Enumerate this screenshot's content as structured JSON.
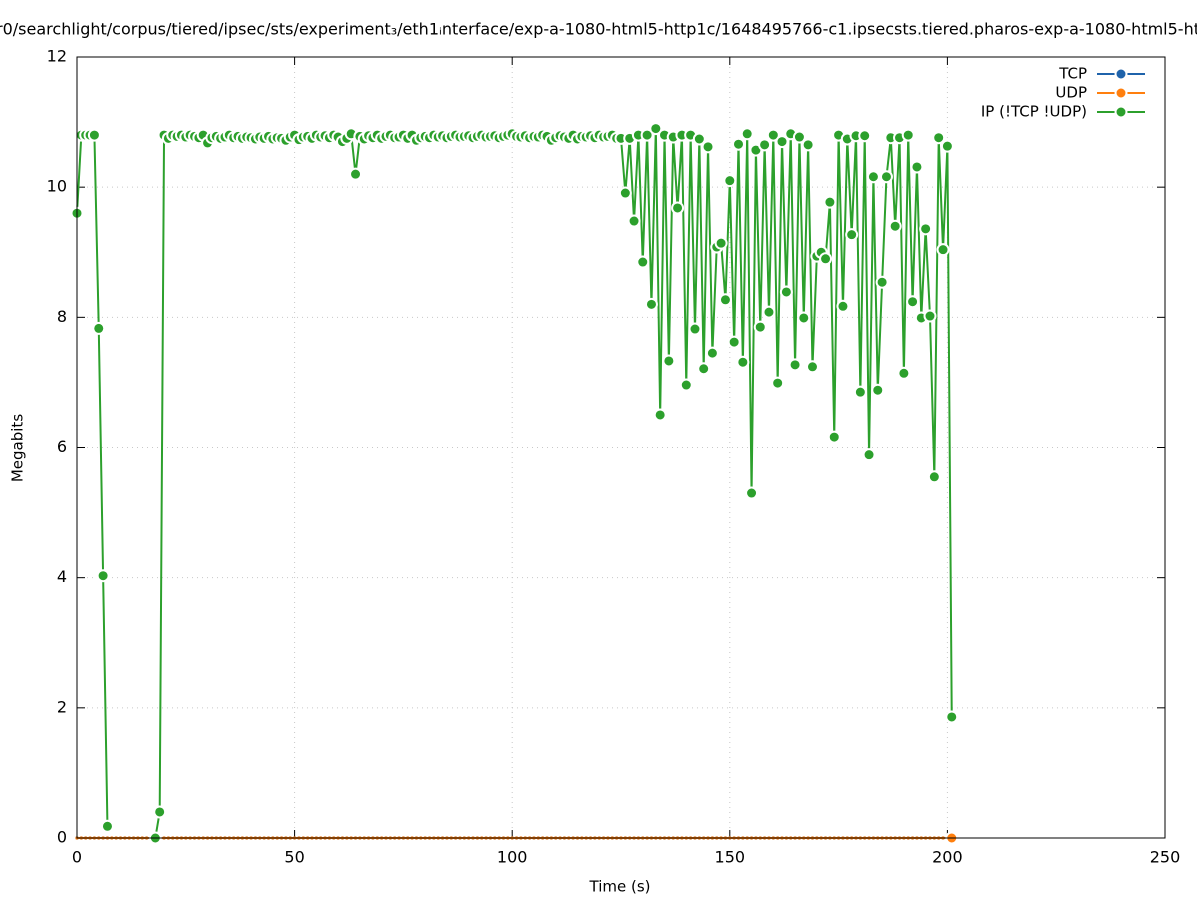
{
  "chart_data": {
    "type": "line",
    "title": "r0/searchlight/corpus/tiered/ipsec/sts/experiment₃/eth1ᵢnterface/exp-a-1080-html5-http1c/1648495766-c1.ipsecsts.tiered.pharos-exp-a-1080-html5-ht",
    "x_label": "Time (s)",
    "y_label": "Megabits",
    "xlim": [
      0,
      250
    ],
    "xticks": [
      0,
      50,
      100,
      150,
      200,
      250
    ],
    "ylim": [
      0,
      12
    ],
    "yticks": [
      0,
      2,
      4,
      6,
      8,
      10,
      12
    ],
    "grid": true,
    "legend": "top-right",
    "x": [
      0,
      1,
      2,
      3,
      4,
      5,
      6,
      7,
      8,
      9,
      10,
      11,
      12,
      13,
      14,
      15,
      16,
      17,
      18,
      19,
      20,
      21,
      22,
      23,
      24,
      25,
      26,
      27,
      28,
      29,
      30,
      31,
      32,
      33,
      34,
      35,
      36,
      37,
      38,
      39,
      40,
      41,
      42,
      43,
      44,
      45,
      46,
      47,
      48,
      49,
      50,
      51,
      52,
      53,
      54,
      55,
      56,
      57,
      58,
      59,
      60,
      61,
      62,
      63,
      64,
      65,
      66,
      67,
      68,
      69,
      70,
      71,
      72,
      73,
      74,
      75,
      76,
      77,
      78,
      79,
      80,
      81,
      82,
      83,
      84,
      85,
      86,
      87,
      88,
      89,
      90,
      91,
      92,
      93,
      94,
      95,
      96,
      97,
      98,
      99,
      100,
      101,
      102,
      103,
      104,
      105,
      106,
      107,
      108,
      109,
      110,
      111,
      112,
      113,
      114,
      115,
      116,
      117,
      118,
      119,
      120,
      121,
      122,
      123,
      124,
      125,
      126,
      127,
      128,
      129,
      130,
      131,
      132,
      133,
      134,
      135,
      136,
      137,
      138,
      139,
      140,
      141,
      142,
      143,
      144,
      145,
      146,
      147,
      148,
      149,
      150,
      151,
      152,
      153,
      154,
      155,
      156,
      157,
      158,
      159,
      160,
      161,
      162,
      163,
      164,
      165,
      166,
      167,
      168,
      169,
      170,
      171,
      172,
      173,
      174,
      175,
      176,
      177,
      178,
      179,
      180,
      181,
      182,
      183,
      184,
      185,
      186,
      187,
      188,
      189,
      190,
      191,
      192,
      193,
      194,
      195,
      196,
      197,
      198,
      199,
      200,
      201
    ],
    "series": [
      {
        "name": "TCP",
        "color": "#1f63ab",
        "values": [
          0,
          0,
          0,
          0,
          0,
          0,
          0,
          0,
          0,
          0,
          0,
          0,
          0,
          0,
          0,
          0,
          0,
          0,
          0,
          0,
          0,
          0,
          0,
          0,
          0,
          0,
          0,
          0,
          0,
          0,
          0,
          0,
          0,
          0,
          0,
          0,
          0,
          0,
          0,
          0,
          0,
          0,
          0,
          0,
          0,
          0,
          0,
          0,
          0,
          0,
          0,
          0,
          0,
          0,
          0,
          0,
          0,
          0,
          0,
          0,
          0,
          0,
          0,
          0,
          0,
          0,
          0,
          0,
          0,
          0,
          0,
          0,
          0,
          0,
          0,
          0,
          0,
          0,
          0,
          0,
          0,
          0,
          0,
          0,
          0,
          0,
          0,
          0,
          0,
          0,
          0,
          0,
          0,
          0,
          0,
          0,
          0,
          0,
          0,
          0,
          0,
          0,
          0,
          0,
          0,
          0,
          0,
          0,
          0,
          0,
          0,
          0,
          0,
          0,
          0,
          0,
          0,
          0,
          0,
          0,
          0,
          0,
          0,
          0,
          0,
          0,
          0,
          0,
          0,
          0,
          0,
          0,
          0,
          0,
          0,
          0,
          0,
          0,
          0,
          0,
          0,
          0,
          0,
          0,
          0,
          0,
          0,
          0,
          0,
          0,
          0,
          0,
          0,
          0,
          0,
          0,
          0,
          0,
          0,
          0,
          0,
          0,
          0,
          0,
          0,
          0,
          0,
          0,
          0,
          0,
          0,
          0,
          0,
          0,
          0,
          0,
          0,
          0,
          0,
          0,
          0,
          0,
          0,
          0,
          0,
          0,
          0,
          0,
          0,
          0,
          0,
          0,
          0,
          0,
          0,
          0,
          0,
          0,
          0,
          0,
          0,
          0
        ]
      },
      {
        "name": "UDP",
        "color": "#ff7f0e",
        "values": [
          0,
          0,
          0,
          0,
          0,
          0,
          0,
          0,
          0,
          0,
          0,
          0,
          0,
          0,
          0,
          0,
          0,
          0,
          0,
          0,
          0,
          0,
          0,
          0,
          0,
          0,
          0,
          0,
          0,
          0,
          0,
          0,
          0,
          0,
          0,
          0,
          0,
          0,
          0,
          0,
          0,
          0,
          0,
          0,
          0,
          0,
          0,
          0,
          0,
          0,
          0,
          0,
          0,
          0,
          0,
          0,
          0,
          0,
          0,
          0,
          0,
          0,
          0,
          0,
          0,
          0,
          0,
          0,
          0,
          0,
          0,
          0,
          0,
          0,
          0,
          0,
          0,
          0,
          0,
          0,
          0,
          0,
          0,
          0,
          0,
          0,
          0,
          0,
          0,
          0,
          0,
          0,
          0,
          0,
          0,
          0,
          0,
          0,
          0,
          0,
          0,
          0,
          0,
          0,
          0,
          0,
          0,
          0,
          0,
          0,
          0,
          0,
          0,
          0,
          0,
          0,
          0,
          0,
          0,
          0,
          0,
          0,
          0,
          0,
          0,
          0,
          0,
          0,
          0,
          0,
          0,
          0,
          0,
          0,
          0,
          0,
          0,
          0,
          0,
          0,
          0,
          0,
          0,
          0,
          0,
          0,
          0,
          0,
          0,
          0,
          0,
          0,
          0,
          0,
          0,
          0,
          0,
          0,
          0,
          0,
          0,
          0,
          0,
          0,
          0,
          0,
          0,
          0,
          0,
          0,
          0,
          0,
          0,
          0,
          0,
          0,
          0,
          0,
          0,
          0,
          0,
          0,
          0,
          0,
          0,
          0,
          0,
          0,
          0,
          0,
          0,
          0,
          0,
          0,
          0,
          0,
          0,
          0,
          0,
          0,
          0,
          0
        ]
      },
      {
        "name": "IP (!TCP  !UDP)",
        "color": "#2ca02c",
        "values": [
          9.6,
          10.8,
          10.8,
          10.8,
          10.8,
          7.83,
          4.03,
          0.18,
          null,
          null,
          null,
          null,
          null,
          null,
          null,
          null,
          null,
          null,
          0,
          0.4,
          10.8,
          10.75,
          10.8,
          10.78,
          10.8,
          10.77,
          10.8,
          10.78,
          10.76,
          10.8,
          10.68,
          10.76,
          10.78,
          10.75,
          10.77,
          10.8,
          10.76,
          10.78,
          10.75,
          10.77,
          10.76,
          10.74,
          10.77,
          10.75,
          10.78,
          10.74,
          10.76,
          10.75,
          10.72,
          10.77,
          10.8,
          10.73,
          10.77,
          10.78,
          10.75,
          10.8,
          10.77,
          10.79,
          10.76,
          10.8,
          10.77,
          10.7,
          10.75,
          10.82,
          10.2,
          10.78,
          10.74,
          10.79,
          10.76,
          10.8,
          10.75,
          10.78,
          10.8,
          10.76,
          10.77,
          10.8,
          10.75,
          10.8,
          10.72,
          10.76,
          10.78,
          10.76,
          10.8,
          10.77,
          10.79,
          10.76,
          10.78,
          10.8,
          10.77,
          10.78,
          10.79,
          10.76,
          10.78,
          10.8,
          10.77,
          10.78,
          10.79,
          10.76,
          10.78,
          10.8,
          10.82,
          10.78,
          10.77,
          10.79,
          10.76,
          10.78,
          10.77,
          10.8,
          10.78,
          10.72,
          10.76,
          10.79,
          10.77,
          10.75,
          10.8,
          10.74,
          10.78,
          10.77,
          10.79,
          10.76,
          10.8,
          10.77,
          10.78,
          10.8,
          10.75,
          10.75,
          9.91,
          10.75,
          9.48,
          10.8,
          8.85,
          10.8,
          8.2,
          10.9,
          6.5,
          10.8,
          7.33,
          10.77,
          9.68,
          10.8,
          6.96,
          10.8,
          7.82,
          10.74,
          7.21,
          10.62,
          7.45,
          9.08,
          9.14,
          8.27,
          10.1,
          7.62,
          10.66,
          7.31,
          10.82,
          5.3,
          10.57,
          7.85,
          10.65,
          8.08,
          10.8,
          6.99,
          10.7,
          8.39,
          10.82,
          7.27,
          10.77,
          7.99,
          10.65,
          7.24,
          8.94,
          9.0,
          8.9,
          9.77,
          6.16,
          10.8,
          8.17,
          10.74,
          9.27,
          10.79,
          6.85,
          10.79,
          5.89,
          10.16,
          6.88,
          8.54,
          10.16,
          10.76,
          9.4,
          10.76,
          7.14,
          10.8,
          8.24,
          10.31,
          7.99,
          9.36,
          8.02,
          5.55,
          10.76,
          9.04,
          10.63,
          1.86
        ]
      }
    ]
  }
}
